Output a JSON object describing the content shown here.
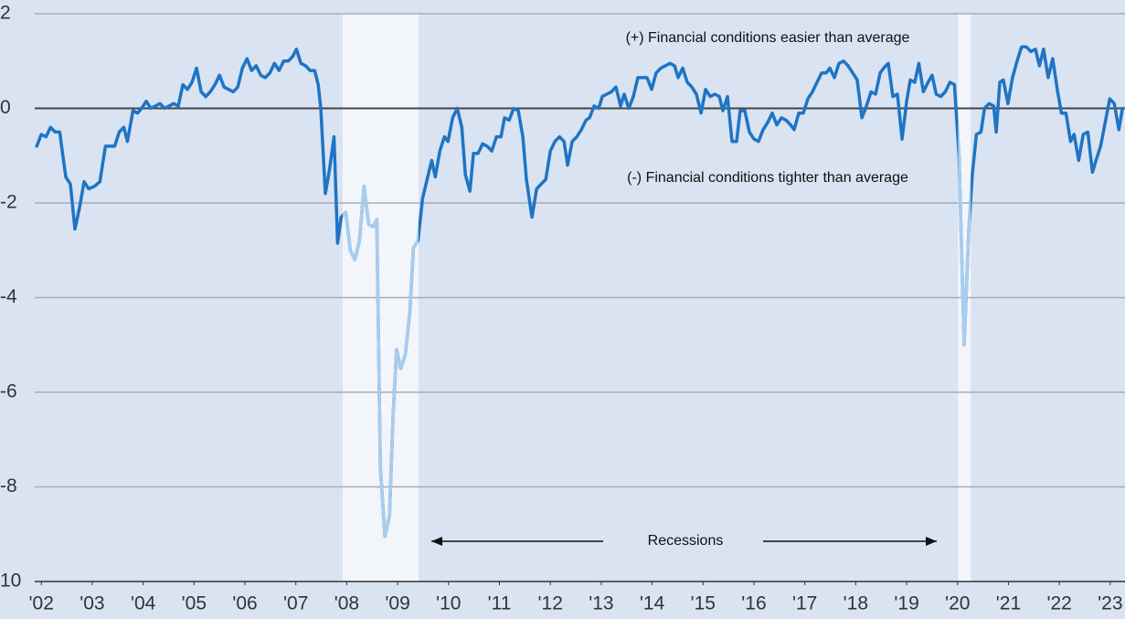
{
  "chart_data": {
    "type": "line",
    "annotations": [
      "(+) Financial conditions easier than average",
      "(-) Financial conditions tighter than average",
      "Recessions"
    ],
    "xlim": [
      2001.87,
      2023.29
    ],
    "xticks": [
      {
        "value": 2002,
        "label": "'02"
      },
      {
        "value": 2003,
        "label": "'03"
      },
      {
        "value": 2004,
        "label": "'04"
      },
      {
        "value": 2005,
        "label": "'05"
      },
      {
        "value": 2006,
        "label": "'06"
      },
      {
        "value": 2007,
        "label": "'07"
      },
      {
        "value": 2008,
        "label": "'08"
      },
      {
        "value": 2009,
        "label": "'09"
      },
      {
        "value": 2010,
        "label": "'10"
      },
      {
        "value": 2011,
        "label": "'11"
      },
      {
        "value": 2012,
        "label": "'12"
      },
      {
        "value": 2013,
        "label": "'13"
      },
      {
        "value": 2014,
        "label": "'14"
      },
      {
        "value": 2015,
        "label": "'15"
      },
      {
        "value": 2016,
        "label": "'16"
      },
      {
        "value": 2017,
        "label": "'17"
      },
      {
        "value": 2018,
        "label": "'18"
      },
      {
        "value": 2019,
        "label": "'19"
      },
      {
        "value": 2020,
        "label": "'20"
      },
      {
        "value": 2021,
        "label": "'21"
      },
      {
        "value": 2022,
        "label": "'22"
      },
      {
        "value": 2023,
        "label": "'23"
      }
    ],
    "ylim": [
      -10,
      2
    ],
    "yticks": [
      2,
      0,
      -2,
      -4,
      -6,
      -8,
      {
        "value": -10,
        "label": "10"
      }
    ],
    "grid": true,
    "zero_line": true,
    "recessions": [
      [
        2007.92,
        2009.41
      ],
      [
        2020.01,
        2020.26
      ]
    ],
    "recession_line_color": "#a9cdec",
    "x": [
      2001.91,
      2002.0,
      2002.09,
      2002.18,
      2002.27,
      2002.36,
      2002.48,
      2002.57,
      2002.66,
      2002.75,
      2002.84,
      2002.93,
      2003.04,
      2003.15,
      2003.26,
      2003.36,
      2003.44,
      2003.53,
      2003.62,
      2003.69,
      2003.8,
      2003.89,
      2003.97,
      2004.06,
      2004.15,
      2004.24,
      2004.33,
      2004.42,
      2004.51,
      2004.6,
      2004.69,
      2004.78,
      2004.87,
      2004.96,
      2005.05,
      2005.14,
      2005.23,
      2005.32,
      2005.41,
      2005.5,
      2005.59,
      2005.68,
      2005.77,
      2005.86,
      2005.95,
      2006.04,
      2006.13,
      2006.22,
      2006.31,
      2006.4,
      2006.49,
      2006.58,
      2006.67,
      2006.76,
      2006.85,
      2006.94,
      2007.01,
      2007.1,
      2007.19,
      2007.28,
      2007.37,
      2007.44,
      2007.49,
      2007.58,
      2007.66,
      2007.75,
      2007.82,
      2007.89,
      2007.98,
      2008.07,
      2008.16,
      2008.25,
      2008.34,
      2008.43,
      2008.52,
      2008.59,
      2008.66,
      2008.75,
      2008.84,
      2008.91,
      2008.98,
      2009.06,
      2009.15,
      2009.24,
      2009.31,
      2009.4,
      2009.49,
      2009.58,
      2009.67,
      2009.74,
      2009.83,
      2009.92,
      2009.99,
      2010.08,
      2010.17,
      2010.26,
      2010.33,
      2010.42,
      2010.49,
      2010.58,
      2010.67,
      2010.76,
      2010.85,
      2010.94,
      2011.03,
      2011.1,
      2011.19,
      2011.28,
      2011.37,
      2011.46,
      2011.53,
      2011.64,
      2011.73,
      2011.82,
      2011.91,
      2012.0,
      2012.09,
      2012.18,
      2012.27,
      2012.34,
      2012.43,
      2012.52,
      2012.61,
      2012.7,
      2012.77,
      2012.86,
      2012.95,
      2013.02,
      2013.11,
      2013.2,
      2013.29,
      2013.38,
      2013.45,
      2013.54,
      2013.63,
      2013.72,
      2013.81,
      2013.9,
      2013.99,
      2014.08,
      2014.17,
      2014.26,
      2014.35,
      2014.44,
      2014.51,
      2014.6,
      2014.69,
      2014.78,
      2014.87,
      2014.96,
      2015.05,
      2015.14,
      2015.23,
      2015.32,
      2015.39,
      2015.48,
      2015.57,
      2015.66,
      2015.73,
      2015.82,
      2015.91,
      2016.0,
      2016.09,
      2016.18,
      2016.27,
      2016.36,
      2016.45,
      2016.54,
      2016.63,
      2016.72,
      2016.79,
      2016.88,
      2016.97,
      2017.06,
      2017.15,
      2017.24,
      2017.33,
      2017.42,
      2017.49,
      2017.58,
      2017.67,
      2017.76,
      2017.85,
      2017.94,
      2018.03,
      2018.12,
      2018.21,
      2018.3,
      2018.39,
      2018.48,
      2018.55,
      2018.64,
      2018.73,
      2018.82,
      2018.91,
      2019.0,
      2019.07,
      2019.16,
      2019.24,
      2019.33,
      2019.42,
      2019.5,
      2019.58,
      2019.67,
      2019.76,
      2019.85,
      2019.94,
      2020.03,
      2020.13,
      2020.22,
      2020.29,
      2020.37,
      2020.46,
      2020.53,
      2020.62,
      2020.71,
      2020.76,
      2020.83,
      2020.9,
      2020.99,
      2021.08,
      2021.17,
      2021.26,
      2021.35,
      2021.44,
      2021.53,
      2021.61,
      2021.69,
      2021.78,
      2021.87,
      2021.96,
      2022.04,
      2022.13,
      2022.22,
      2022.29,
      2022.38,
      2022.47,
      2022.56,
      2022.65,
      2022.72,
      2022.81,
      2022.9,
      2022.99,
      2023.08,
      2023.17,
      2023.24
    ],
    "series": [
      {
        "color": "#1f74c4",
        "values": [
          -0.8,
          -0.55,
          -0.6,
          -0.4,
          -0.5,
          -0.5,
          -1.45,
          -1.6,
          -2.55,
          -2.1,
          -1.55,
          -1.7,
          -1.65,
          -1.55,
          -0.8,
          -0.8,
          -0.8,
          -0.5,
          -0.4,
          -0.7,
          -0.05,
          -0.1,
          0.0,
          0.15,
          0.0,
          0.05,
          0.1,
          0.0,
          0.05,
          0.1,
          0.05,
          0.5,
          0.4,
          0.55,
          0.85,
          0.35,
          0.25,
          0.35,
          0.5,
          0.7,
          0.45,
          0.4,
          0.35,
          0.45,
          0.85,
          1.05,
          0.8,
          0.9,
          0.7,
          0.65,
          0.75,
          0.95,
          0.8,
          1.0,
          1.0,
          1.1,
          1.25,
          0.95,
          0.9,
          0.8,
          0.8,
          0.5,
          0.0,
          -1.8,
          -1.3,
          -0.6,
          -2.85,
          -2.3,
          -2.2,
          -3.0,
          -3.2,
          -2.8,
          -1.65,
          -2.45,
          -2.5,
          -2.35,
          -7.6,
          -9.05,
          -8.6,
          -6.5,
          -5.1,
          -5.5,
          -5.2,
          -4.3,
          -2.95,
          -2.8,
          -1.9,
          -1.5,
          -1.1,
          -1.45,
          -0.9,
          -0.6,
          -0.7,
          -0.2,
          0.0,
          -0.4,
          -1.4,
          -1.75,
          -0.95,
          -0.95,
          -0.75,
          -0.8,
          -0.9,
          -0.6,
          -0.6,
          -0.2,
          -0.25,
          0.0,
          -0.05,
          -0.6,
          -1.5,
          -2.3,
          -1.7,
          -1.6,
          -1.5,
          -0.9,
          -0.7,
          -0.6,
          -0.7,
          -1.2,
          -0.7,
          -0.6,
          -0.45,
          -0.25,
          -0.2,
          0.05,
          0.0,
          0.25,
          0.3,
          0.35,
          0.45,
          0.05,
          0.3,
          0.0,
          0.25,
          0.65,
          0.65,
          0.65,
          0.4,
          0.75,
          0.85,
          0.9,
          0.95,
          0.9,
          0.65,
          0.85,
          0.55,
          0.45,
          0.3,
          -0.1,
          0.4,
          0.25,
          0.3,
          0.25,
          -0.05,
          0.25,
          -0.7,
          -0.7,
          -0.05,
          -0.05,
          -0.5,
          -0.65,
          -0.7,
          -0.45,
          -0.3,
          -0.1,
          -0.35,
          -0.2,
          -0.25,
          -0.35,
          -0.45,
          -0.1,
          -0.1,
          0.2,
          0.35,
          0.55,
          0.75,
          0.75,
          0.85,
          0.65,
          0.95,
          1.0,
          0.9,
          0.75,
          0.6,
          -0.2,
          0.05,
          0.35,
          0.3,
          0.75,
          0.85,
          0.95,
          0.25,
          0.3,
          -0.65,
          0.15,
          0.6,
          0.55,
          0.95,
          0.35,
          0.55,
          0.7,
          0.3,
          0.25,
          0.35,
          0.55,
          0.5,
          -1.0,
          -5.0,
          -2.6,
          -1.4,
          -0.55,
          -0.5,
          0.0,
          0.1,
          0.05,
          -0.5,
          0.55,
          0.6,
          0.1,
          0.65,
          1.0,
          1.3,
          1.3,
          1.2,
          1.25,
          0.9,
          1.25,
          0.65,
          1.05,
          0.4,
          -0.1,
          -0.1,
          -0.7,
          -0.55,
          -1.1,
          -0.55,
          -0.5,
          -1.35,
          -1.1,
          -0.8,
          -0.3,
          0.2,
          0.1,
          -0.45,
          0.0
        ]
      }
    ]
  }
}
